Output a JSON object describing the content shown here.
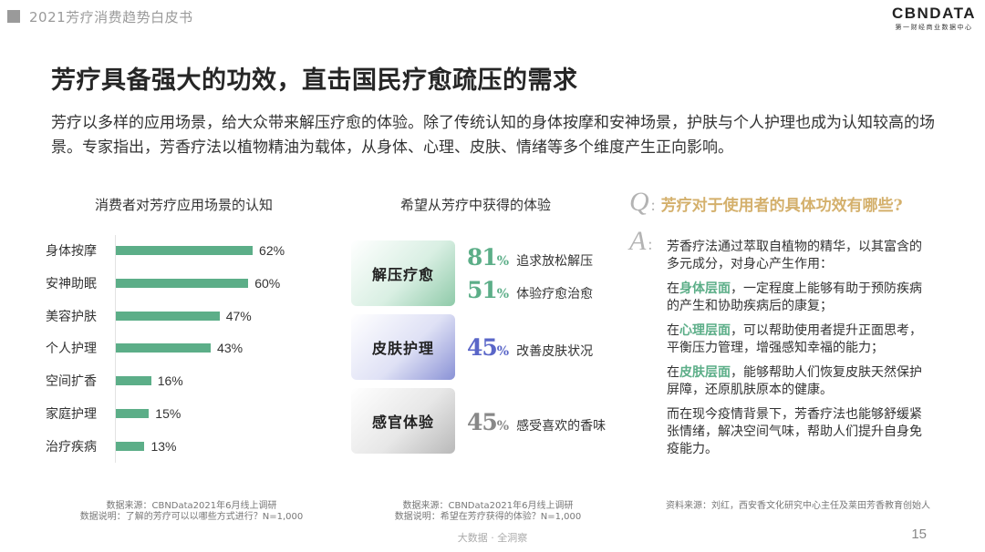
{
  "header": {
    "report_title": "2021芳疗消费趋势白皮书"
  },
  "logo": {
    "brand": "CBNDATA",
    "tagline": "第一财经商业数据中心"
  },
  "page_title": "芳疗具备强大的功效，直击国民疗愈疏压的需求",
  "intro": "芳疗以多样的应用场景，给大众带来解压疗愈的体验。除了传统认知的身体按摩和安神场景，护肤与个人护理也成为认知较高的场景。专家指出，芳香疗法以植物精油为载体，从身体、心理、皮肤、情绪等多个维度产生正向影响。",
  "chart_data": {
    "type": "bar",
    "orientation": "horizontal",
    "title": "消费者对芳疗应用场景的认知",
    "categories": [
      "身体按摩",
      "安神助眠",
      "美容护肤",
      "个人护理",
      "空间扩香",
      "家庭护理",
      "治疗疾病"
    ],
    "values": [
      62,
      60,
      47,
      43,
      16,
      15,
      13
    ],
    "value_labels": [
      "62%",
      "60%",
      "47%",
      "43%",
      "16%",
      "15%",
      "13%"
    ],
    "unit": "%",
    "color": "#5cae88",
    "xlabel": "",
    "ylabel": "",
    "grid": false,
    "legend": null
  },
  "left_panel": {
    "source_line1": "数据来源：CBNData2021年6月线上调研",
    "source_line2": "数据说明：了解的芳疗可以以哪些方式进行？N=1,000"
  },
  "middle_panel": {
    "title": "希望从芳疗中获得的体验",
    "cards": [
      {
        "label": "解压疗愈",
        "stats": [
          {
            "value": "81",
            "unit": "%",
            "desc": "追求放松解压"
          },
          {
            "value": "51",
            "unit": "%",
            "desc": "体验疗愈治愈"
          }
        ]
      },
      {
        "label": "皮肤护理",
        "stats": [
          {
            "value": "45",
            "unit": "%",
            "desc": "改善皮肤状况"
          }
        ]
      },
      {
        "label": "感官体验",
        "stats": [
          {
            "value": "45",
            "unit": "%",
            "desc": "感受喜欢的香味"
          }
        ]
      }
    ],
    "source_line1": "数据来源：CBNData2021年6月线上调研",
    "source_line2": "数据说明：希望在芳疗获得的体验？N=1,000"
  },
  "qa": {
    "q_mark": "Q",
    "a_mark": "A",
    "colon": ":",
    "question": "芳疗对于使用者的具体功效有哪些?",
    "p1": "芳香疗法通过萃取自植物的精华，以其富含的多元成分，对身心产生作用：",
    "p2_pre": "在",
    "p2_hl": "身体层面",
    "p2_post": "，一定程度上能够有助于预防疾病的产生和协助疾病后的康复；",
    "p3_pre": "在",
    "p3_hl": "心理层面",
    "p3_post": "，可以帮助使用者提升正面思考，平衡压力管理，增强感知幸福的能力；",
    "p4_pre": "在",
    "p4_hl": "皮肤层面",
    "p4_post": "，能够帮助人们恢复皮肤天然保护屏障，还原肌肤原本的健康。",
    "p5": "而在现今疫情背景下，芳香疗法也能够舒缓紧张情绪，解决空间气味，帮助人们提升自身免疫能力。",
    "source": "资料来源：刘红，西安香文化研究中心主任及莱田芳香教育创始人"
  },
  "footer": {
    "tagline": "大数据 · 全洞察",
    "page_number": "15"
  }
}
